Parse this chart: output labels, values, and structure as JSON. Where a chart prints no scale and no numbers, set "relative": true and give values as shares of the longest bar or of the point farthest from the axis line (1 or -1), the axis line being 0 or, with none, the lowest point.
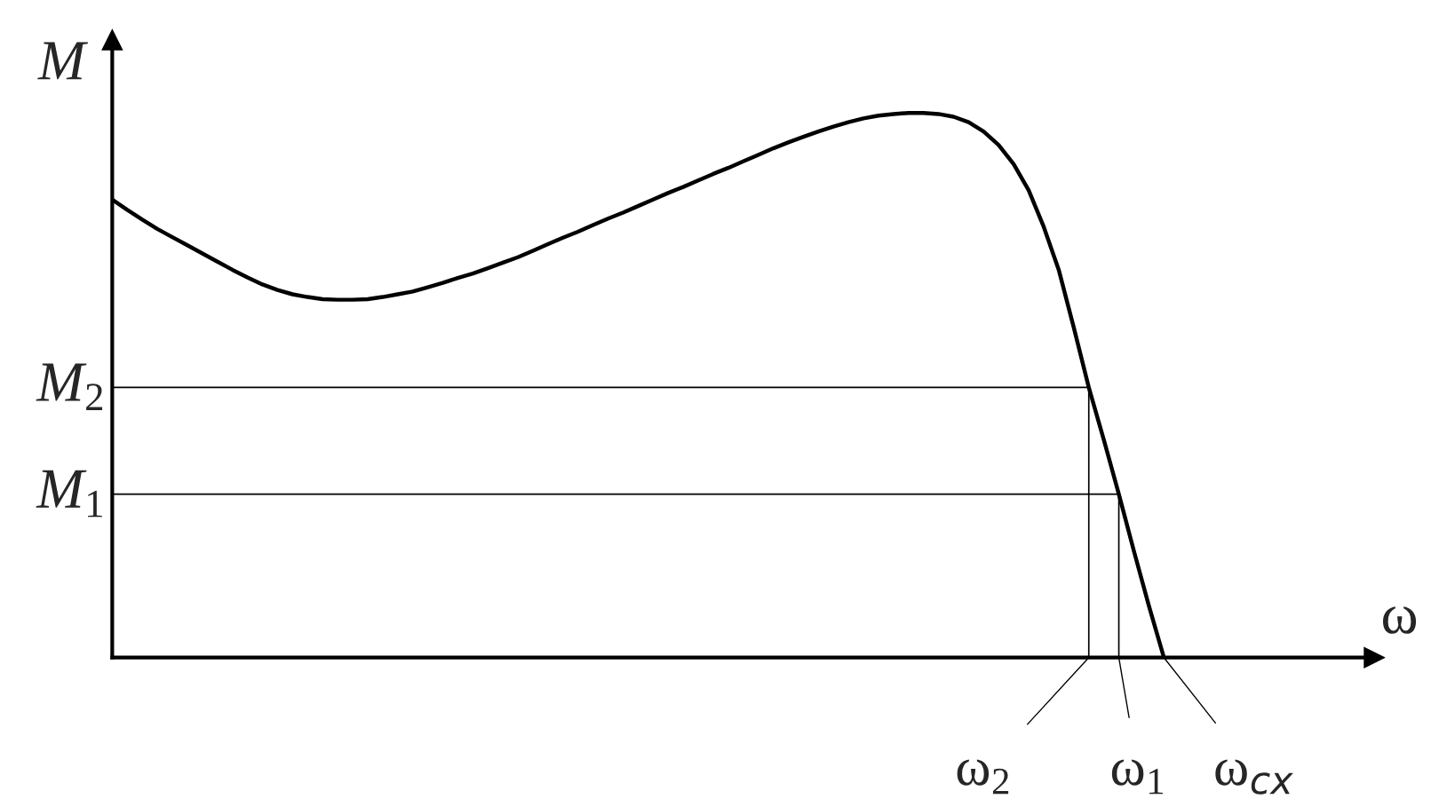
{
  "chart_data": {
    "type": "line",
    "relative": true,
    "xlabel": "ω",
    "ylabel": "M",
    "grid": false,
    "legend": false,
    "marker": "none",
    "line_style": "solid",
    "categories": [
      null,
      null,
      null,
      null,
      null,
      null,
      null,
      null,
      null,
      null,
      null,
      null,
      null,
      null,
      null,
      null,
      null,
      null,
      null,
      null,
      null,
      null,
      null,
      null,
      null,
      null,
      null,
      null,
      null,
      null,
      null,
      null,
      null,
      null,
      null,
      null,
      null,
      null,
      null,
      null,
      null,
      null,
      null,
      null,
      null,
      null,
      null,
      null,
      null,
      null,
      null,
      null,
      null,
      null,
      null,
      null,
      null,
      null,
      null,
      null,
      null,
      null,
      null,
      null,
      null,
      null,
      null,
      null,
      null,
      null,
      null,
      null,
      null,
      null,
      null,
      null,
      null,
      null,
      null,
      null,
      null,
      null,
      null,
      null,
      null
    ],
    "series": [
      {
        "color": "#000000",
        "values": [
          0.841,
          0.822,
          0.804,
          0.787,
          0.772,
          0.757,
          0.742,
          0.727,
          0.712,
          0.698,
          0.685,
          0.675,
          0.667,
          0.662,
          0.658,
          0.657,
          0.657,
          0.658,
          0.662,
          0.667,
          0.672,
          0.68,
          0.688,
          0.697,
          0.705,
          0.715,
          0.725,
          0.735,
          0.747,
          0.759,
          0.771,
          0.782,
          0.794,
          0.806,
          0.817,
          0.829,
          0.841,
          0.853,
          0.864,
          0.876,
          0.888,
          0.899,
          0.911,
          0.923,
          0.935,
          0.946,
          0.956,
          0.966,
          0.975,
          0.983,
          0.99,
          0.995,
          0.998,
          1.0,
          1.0,
          0.998,
          0.993,
          0.983,
          0.966,
          0.941,
          0.906,
          0.858,
          0.791,
          0.712,
          0.606,
          0.496,
          0.4,
          0.3,
          0.196,
          0.095,
          0,
          null,
          null,
          null,
          null,
          null,
          null,
          null,
          null,
          null,
          null,
          null,
          null,
          null,
          null
        ]
      }
    ],
    "ref_lines": [
      {
        "axis": "y",
        "value": 0.496,
        "label": "M$_{2}$"
      },
      {
        "axis": "y",
        "value": 0.3,
        "label": "M$_{1}$"
      }
    ],
    "annotations": [
      "ω$_{2}$",
      "ω$_{1}$",
      "ω$_{cx}$"
    ]
  }
}
